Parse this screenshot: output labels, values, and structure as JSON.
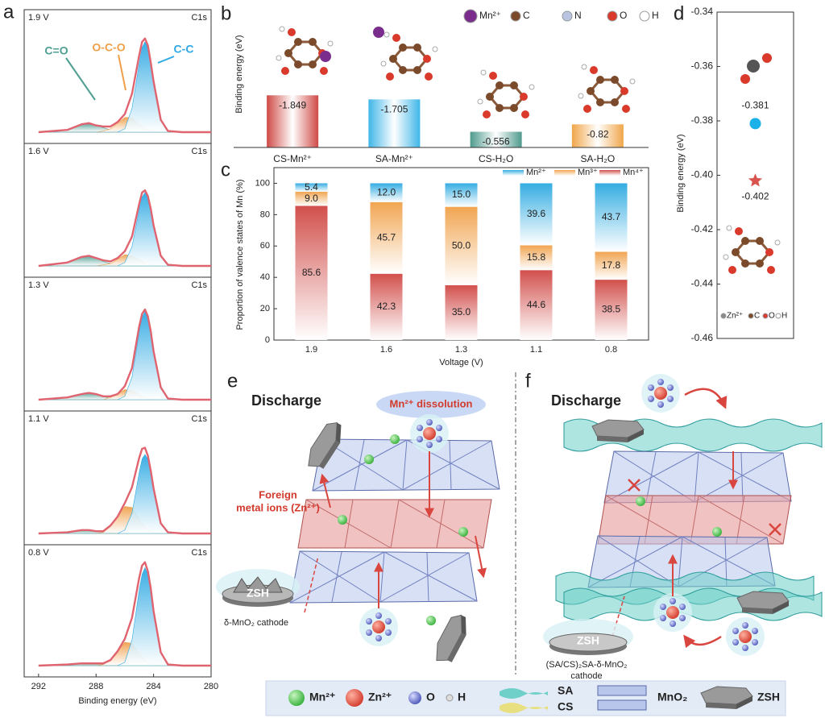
{
  "chart_data": [
    {
      "type": "area",
      "label": "1.9 V",
      "core_level": "C1s",
      "xlim": [
        293,
        280
      ],
      "ylim": [
        0,
        100
      ],
      "x": [
        292,
        290,
        289,
        288.5,
        288,
        287.5,
        287,
        286.5,
        286,
        285.5,
        285,
        284.8,
        284.6,
        284.4,
        284.2,
        284,
        283.5,
        283,
        282,
        280
      ],
      "series": [
        {
          "name": "C=O",
          "color": "#4f9e92",
          "fill": true,
          "values": [
            0,
            2,
            7,
            8,
            6,
            4,
            2,
            1,
            0,
            0,
            0,
            0,
            0,
            0,
            0,
            0,
            0,
            0,
            0,
            0
          ]
        },
        {
          "name": "O-C-O",
          "color": "#f0a04b",
          "fill": true,
          "values": [
            0,
            0,
            0,
            0,
            0,
            1,
            3,
            8,
            13,
            13,
            7,
            5,
            3,
            2,
            1,
            1,
            0,
            0,
            0,
            0
          ]
        },
        {
          "name": "C-C",
          "color": "#2fa9e3",
          "fill": true,
          "values": [
            0,
            0,
            0,
            0,
            0,
            0,
            0,
            0,
            3,
            21,
            61,
            75,
            80,
            75,
            61,
            44,
            11,
            1,
            0,
            0
          ]
        },
        {
          "color": "#e06470",
          "fill": false,
          "values": [
            0,
            2,
            7,
            8,
            6,
            5,
            5,
            9,
            16,
            34,
            68,
            80,
            83,
            77,
            62,
            45,
            11,
            1,
            0,
            0
          ]
        }
      ]
    },
    {
      "type": "area",
      "label": "1.6 V",
      "core_level": "C1s",
      "xlim": [
        293,
        280
      ],
      "ylim": [
        0,
        100
      ],
      "x": [
        292,
        290,
        289,
        288.5,
        288,
        287.5,
        287,
        286.5,
        286,
        285.5,
        285,
        284.8,
        284.6,
        284.4,
        284.2,
        284,
        283.5,
        283,
        282,
        280
      ],
      "series": [
        {
          "color": "#4f9e92",
          "fill": true,
          "values": [
            0,
            3,
            8,
            9,
            7,
            4,
            2,
            1,
            0,
            0,
            0,
            0,
            0,
            0,
            0,
            0,
            0,
            0,
            0,
            0
          ]
        },
        {
          "color": "#f0a04b",
          "fill": true,
          "values": [
            0,
            0,
            0,
            0,
            0,
            1,
            2,
            6,
            10,
            9,
            5,
            4,
            2,
            1,
            1,
            0,
            0,
            0,
            0,
            0
          ]
        },
        {
          "color": "#2fa9e3",
          "fill": true,
          "values": [
            0,
            0,
            0,
            0,
            0,
            0,
            0,
            0,
            3,
            17,
            50,
            61,
            65,
            61,
            50,
            36,
            9,
            1,
            0,
            0
          ]
        },
        {
          "color": "#e06470",
          "fill": false,
          "values": [
            0,
            3,
            8,
            9,
            7,
            5,
            4,
            7,
            13,
            26,
            55,
            65,
            67,
            62,
            51,
            36,
            9,
            1,
            0,
            0
          ]
        }
      ]
    },
    {
      "type": "area",
      "label": "1.3 V",
      "core_level": "C1s",
      "xlim": [
        293,
        280
      ],
      "ylim": [
        0,
        100
      ],
      "x": [
        292,
        290,
        289,
        288.5,
        288,
        287.5,
        287,
        286.5,
        286,
        285.5,
        285,
        284.8,
        284.6,
        284.4,
        284.2,
        284,
        283.5,
        283,
        282,
        280
      ],
      "series": [
        {
          "color": "#4f9e92",
          "fill": true,
          "values": [
            0,
            2,
            5,
            6,
            5,
            3,
            1,
            0,
            0,
            0,
            0,
            0,
            0,
            0,
            0,
            0,
            0,
            0,
            0,
            0
          ]
        },
        {
          "color": "#f0a04b",
          "fill": true,
          "values": [
            0,
            0,
            0,
            0,
            0,
            0,
            2,
            5,
            9,
            8,
            5,
            3,
            2,
            1,
            1,
            0,
            0,
            0,
            0,
            0
          ]
        },
        {
          "color": "#2fa9e3",
          "fill": true,
          "values": [
            0,
            0,
            0,
            0,
            0,
            0,
            0,
            0,
            3,
            20,
            60,
            73,
            78,
            73,
            60,
            43,
            11,
            1,
            0,
            0
          ]
        },
        {
          "color": "#e06470",
          "fill": false,
          "values": [
            0,
            2,
            5,
            6,
            5,
            3,
            3,
            5,
            12,
            28,
            65,
            76,
            80,
            74,
            61,
            43,
            11,
            1,
            0,
            0
          ]
        }
      ]
    },
    {
      "type": "area",
      "label": "1.1 V",
      "core_level": "C1s",
      "xlim": [
        293,
        280
      ],
      "ylim": [
        0,
        100
      ],
      "x": [
        292,
        290,
        289,
        288.5,
        288,
        287.5,
        287,
        286.5,
        286,
        285.5,
        285,
        284.8,
        284.6,
        284.4,
        284.2,
        284,
        283.5,
        283,
        282,
        280
      ],
      "series": [
        {
          "color": "#4f9e92",
          "fill": true,
          "values": [
            0,
            1,
            3,
            3,
            2,
            1,
            1,
            0,
            0,
            0,
            0,
            0,
            0,
            0,
            0,
            0,
            0,
            0,
            0,
            0
          ]
        },
        {
          "color": "#f0a04b",
          "fill": true,
          "values": [
            0,
            0,
            0,
            0,
            0,
            1,
            6,
            15,
            24,
            23,
            13,
            9,
            6,
            3,
            2,
            1,
            0,
            0,
            0,
            0
          ]
        },
        {
          "color": "#2fa9e3",
          "fill": true,
          "values": [
            0,
            0,
            0,
            0,
            0,
            0,
            0,
            0,
            3,
            18,
            54,
            66,
            70,
            66,
            54,
            39,
            9,
            1,
            0,
            0
          ]
        },
        {
          "color": "#e06470",
          "fill": false,
          "values": [
            0,
            1,
            3,
            3,
            2,
            2,
            7,
            15,
            27,
            41,
            67,
            75,
            76,
            69,
            56,
            40,
            9,
            1,
            0,
            0
          ]
        }
      ]
    },
    {
      "type": "area",
      "label": "0.8 V",
      "core_level": "C1s",
      "xlim": [
        293,
        280
      ],
      "ylim": [
        0,
        100
      ],
      "xticks": [
        292,
        288,
        284,
        280
      ],
      "xlabel": "Binding energy (eV)",
      "x": [
        292,
        290,
        289,
        288.5,
        288,
        287.5,
        287,
        286.5,
        286,
        285.5,
        285,
        284.8,
        284.6,
        284.4,
        284.2,
        284,
        283.5,
        283,
        282,
        280
      ],
      "series": [
        {
          "color": "#4f9e92",
          "fill": true,
          "values": [
            0,
            1,
            2,
            2,
            2,
            1,
            0,
            0,
            0,
            0,
            0,
            0,
            0,
            0,
            0,
            0,
            0,
            0,
            0,
            0
          ]
        },
        {
          "color": "#f0a04b",
          "fill": true,
          "values": [
            0,
            0,
            0,
            0,
            0,
            1,
            5,
            13,
            21,
            20,
            11,
            8,
            5,
            3,
            2,
            1,
            0,
            0,
            0,
            0
          ]
        },
        {
          "color": "#2fa9e3",
          "fill": true,
          "values": [
            0,
            0,
            0,
            0,
            0,
            0,
            0,
            0,
            3,
            23,
            68,
            82,
            88,
            82,
            68,
            48,
            12,
            1,
            0,
            0
          ]
        },
        {
          "color": "#e06470",
          "fill": false,
          "values": [
            0,
            1,
            2,
            2,
            2,
            2,
            5,
            13,
            24,
            43,
            79,
            90,
            93,
            85,
            70,
            49,
            12,
            1,
            0,
            0
          ]
        }
      ]
    },
    {
      "type": "bar",
      "ylabel": "Binding energy (eV)",
      "categories": [
        "CS-Mn²⁺",
        "SA-Mn²⁺",
        "CS-H₂O",
        "SA-H₂O"
      ],
      "values": [
        -1.849,
        -1.705,
        -0.556,
        -0.82
      ],
      "colors": [
        "#cf4a46",
        "#3fb6e8",
        "#4e9a8c",
        "#f0a64a"
      ],
      "ylim": [
        0,
        -2.6
      ],
      "atom_legend": [
        {
          "name": "Mn²⁺",
          "color": "#7b2d8e"
        },
        {
          "name": "C",
          "color": "#7a4a2a"
        },
        {
          "name": "N",
          "color": "#b8c4e0"
        },
        {
          "name": "O",
          "color": "#d93a2b"
        },
        {
          "name": "H",
          "color": "#ffffff"
        }
      ]
    },
    {
      "type": "stacked_bar",
      "ylabel": "Proportion of valence states of Mn (%)",
      "xlabel": "Voltage (V)",
      "categories": [
        "1.9",
        "1.6",
        "1.3",
        "1.1",
        "0.8"
      ],
      "series": [
        {
          "name": "Mn²⁺",
          "color": "#29a8e0",
          "values": [
            5.4,
            12.0,
            15.0,
            39.6,
            43.7
          ],
          "value_labels": [
            "5.4",
            "12.0",
            "15.0",
            "39.6",
            "43.7"
          ]
        },
        {
          "name": "Mn³⁺",
          "color": "#f0a048",
          "values": [
            9.0,
            45.7,
            50.0,
            15.8,
            17.8
          ],
          "value_labels": [
            "9.0",
            "45.7",
            "50.0",
            "15.8",
            "17.8"
          ]
        },
        {
          "name": "Mn⁴⁺",
          "color": "#cf4642",
          "values": [
            85.6,
            42.3,
            35.0,
            44.6,
            38.5
          ],
          "value_labels": [
            "85.6",
            "42.3",
            "35.0",
            "44.6",
            "38.5"
          ]
        }
      ],
      "ylim": [
        0,
        110
      ],
      "yticks": [
        0,
        20,
        40,
        60,
        80,
        100
      ]
    },
    {
      "type": "scatter",
      "ylabel": "Binding energy (eV)",
      "ylim": [
        -0.46,
        -0.34
      ],
      "yticks": [
        -0.34,
        -0.36,
        -0.38,
        {
          "value": -0.4,
          "label": "-0.40"
        },
        -0.42,
        -0.44,
        -0.46
      ],
      "values": [
        -0.381,
        -0.402
      ],
      "colors": [
        "#1ab0e8",
        "#d9534f"
      ],
      "markers": [
        "circle",
        "star"
      ],
      "atom_legend": [
        {
          "name": "Zn²⁺",
          "color": "#8a8a8a"
        },
        {
          "name": "C",
          "color": "#7a4a2a"
        },
        {
          "name": "O",
          "color": "#d93a2b"
        },
        {
          "name": "H",
          "color": "#ffffff"
        }
      ]
    }
  ],
  "panel_labels": [
    "a",
    "b",
    "c",
    "d",
    "e",
    "f"
  ],
  "panel_e": {
    "heading": "Discharge",
    "bubble": "Mn²⁺ dissolution",
    "ion_note": [
      "Foreign",
      "metal ions (Zn²⁺)"
    ],
    "disc": "ZSH",
    "caption": "δ-MnO₂ cathode"
  },
  "panel_f": {
    "heading": "Discharge",
    "disc": "ZSH",
    "caption": [
      "(SA/CS)₂SA-δ-MnO₂",
      "cathode"
    ]
  },
  "legend": [
    "Mn²⁺",
    "Zn²⁺",
    "O",
    "H",
    "SA",
    "CS",
    "MnO₂",
    "ZSH"
  ]
}
